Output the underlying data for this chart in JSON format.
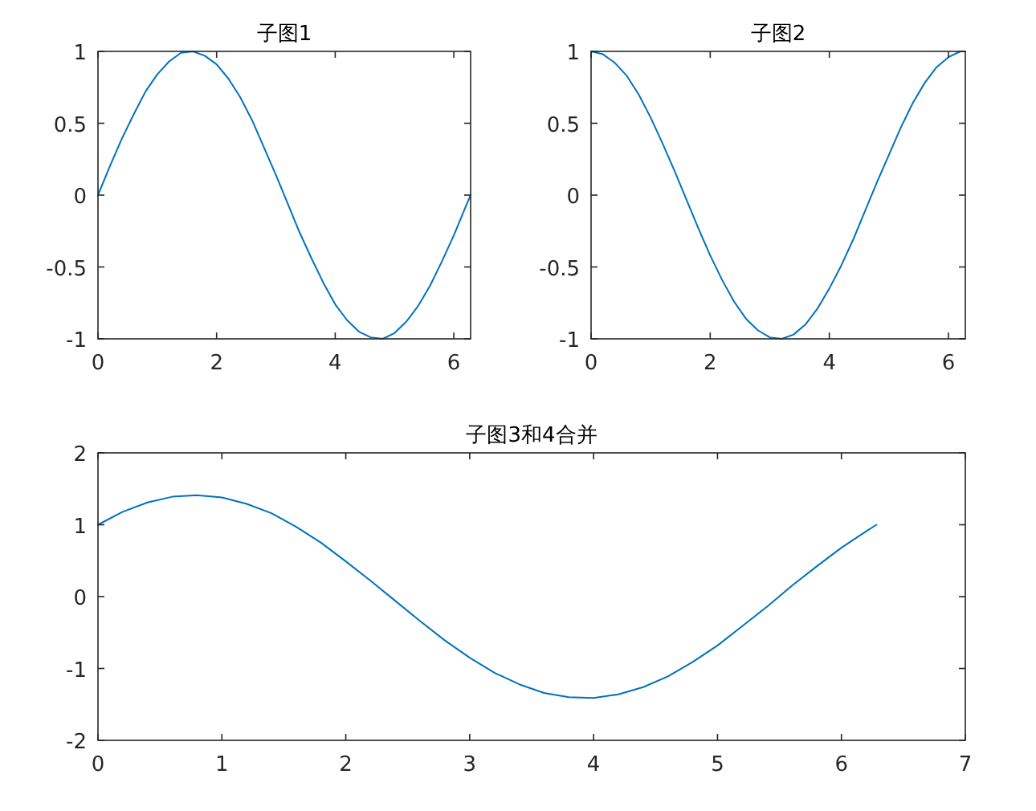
{
  "chart_data": [
    {
      "type": "line",
      "title": "子图1",
      "color": "#0072bd",
      "xlim": [
        0,
        6.2832
      ],
      "ylim": [
        -1,
        1
      ],
      "xticks": [
        0,
        2,
        4,
        6
      ],
      "yticks": [
        -1,
        -0.5,
        0,
        0.5,
        1
      ],
      "x": [
        0,
        0.2,
        0.4,
        0.6,
        0.8,
        1.0,
        1.2,
        1.4,
        1.6,
        1.8,
        2.0,
        2.2,
        2.4,
        2.6,
        2.8,
        3.0,
        3.2,
        3.4,
        3.6,
        3.8,
        4.0,
        4.2,
        4.4,
        4.6,
        4.8,
        5.0,
        5.2,
        5.4,
        5.6,
        5.8,
        6.0,
        6.2,
        6.2832
      ],
      "values": [
        0,
        0.2,
        0.39,
        0.56,
        0.72,
        0.84,
        0.93,
        0.99,
        1.0,
        0.97,
        0.91,
        0.81,
        0.68,
        0.52,
        0.33,
        0.14,
        -0.06,
        -0.26,
        -0.44,
        -0.61,
        -0.76,
        -0.87,
        -0.95,
        -0.99,
        -1.0,
        -0.96,
        -0.88,
        -0.77,
        -0.63,
        -0.46,
        -0.28,
        -0.08,
        0
      ]
    },
    {
      "type": "line",
      "title": "子图2",
      "color": "#0072bd",
      "xlim": [
        0,
        6.2832
      ],
      "ylim": [
        -1,
        1
      ],
      "xticks": [
        0,
        2,
        4,
        6
      ],
      "yticks": [
        -1,
        -0.5,
        0,
        0.5,
        1
      ],
      "x": [
        0,
        0.2,
        0.4,
        0.6,
        0.8,
        1.0,
        1.2,
        1.4,
        1.6,
        1.8,
        2.0,
        2.2,
        2.4,
        2.6,
        2.8,
        3.0,
        3.2,
        3.4,
        3.6,
        3.8,
        4.0,
        4.2,
        4.4,
        4.6,
        4.8,
        5.0,
        5.2,
        5.4,
        5.6,
        5.8,
        6.0,
        6.2,
        6.2832
      ],
      "values": [
        1.0,
        0.98,
        0.92,
        0.83,
        0.7,
        0.54,
        0.36,
        0.17,
        -0.03,
        -0.23,
        -0.42,
        -0.59,
        -0.74,
        -0.86,
        -0.94,
        -0.99,
        -1.0,
        -0.97,
        -0.9,
        -0.79,
        -0.65,
        -0.49,
        -0.31,
        -0.11,
        0.09,
        0.28,
        0.47,
        0.64,
        0.78,
        0.89,
        0.96,
        1.0,
        1.0
      ]
    },
    {
      "type": "line",
      "title": "子图3和4合并",
      "color": "#0072bd",
      "xlim": [
        0,
        7
      ],
      "ylim": [
        -2,
        2
      ],
      "xticks": [
        0,
        1,
        2,
        3,
        4,
        5,
        6,
        7
      ],
      "yticks": [
        -2,
        -1,
        0,
        1,
        2
      ],
      "x": [
        0,
        0.2,
        0.4,
        0.6,
        0.8,
        1.0,
        1.2,
        1.4,
        1.6,
        1.8,
        2.0,
        2.2,
        2.4,
        2.6,
        2.8,
        3.0,
        3.2,
        3.4,
        3.6,
        3.8,
        4.0,
        4.2,
        4.4,
        4.6,
        4.8,
        5.0,
        5.2,
        5.4,
        5.6,
        5.8,
        6.0,
        6.2,
        6.2832
      ],
      "values": [
        1.0,
        1.18,
        1.31,
        1.39,
        1.41,
        1.38,
        1.29,
        1.16,
        0.97,
        0.75,
        0.49,
        0.22,
        -0.06,
        -0.34,
        -0.61,
        -0.85,
        -1.06,
        -1.22,
        -1.34,
        -1.4,
        -1.41,
        -1.36,
        -1.26,
        -1.11,
        -0.91,
        -0.68,
        -0.41,
        -0.14,
        0.15,
        0.42,
        0.68,
        0.91,
        1.0
      ]
    }
  ]
}
